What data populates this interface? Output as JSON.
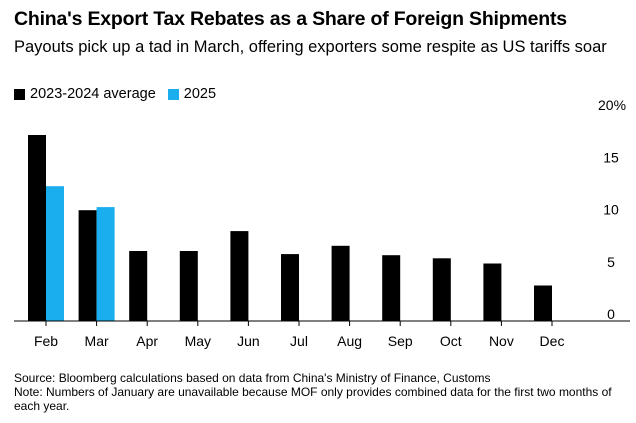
{
  "title": "China's Export Tax Rebates as a Share of Foreign Shipments",
  "subtitle": "Payouts pick up a tad in March, offering exporters some respite as US tariffs soar",
  "colors": {
    "avg": "#000000",
    "y2025": "#1aaeef",
    "axis": "#000000"
  },
  "chart_data": {
    "type": "bar",
    "categories": [
      "Feb",
      "Mar",
      "Apr",
      "May",
      "Jun",
      "Jul",
      "Aug",
      "Sep",
      "Oct",
      "Nov",
      "Dec"
    ],
    "series": [
      {
        "name": "2023-2024 average",
        "values": [
          17.8,
          10.6,
          6.7,
          6.7,
          8.6,
          6.4,
          7.2,
          6.3,
          6.0,
          5.5,
          3.4
        ]
      },
      {
        "name": "2025",
        "values": [
          12.9,
          10.9,
          null,
          null,
          null,
          null,
          null,
          null,
          null,
          null,
          null
        ]
      }
    ],
    "ylim": [
      0,
      20
    ],
    "yticks": [
      0,
      5,
      10,
      15,
      20
    ],
    "ytick_labels": [
      "0",
      "5",
      "10",
      "15",
      "20%"
    ],
    "legend_position": "top-left",
    "grid": false
  },
  "source": "Source: Bloomberg calculations based on data from China's Ministry of Finance, Customs",
  "note": "Note: Numbers of January are unavailable because MOF only provides combined data for the first two months of each year."
}
